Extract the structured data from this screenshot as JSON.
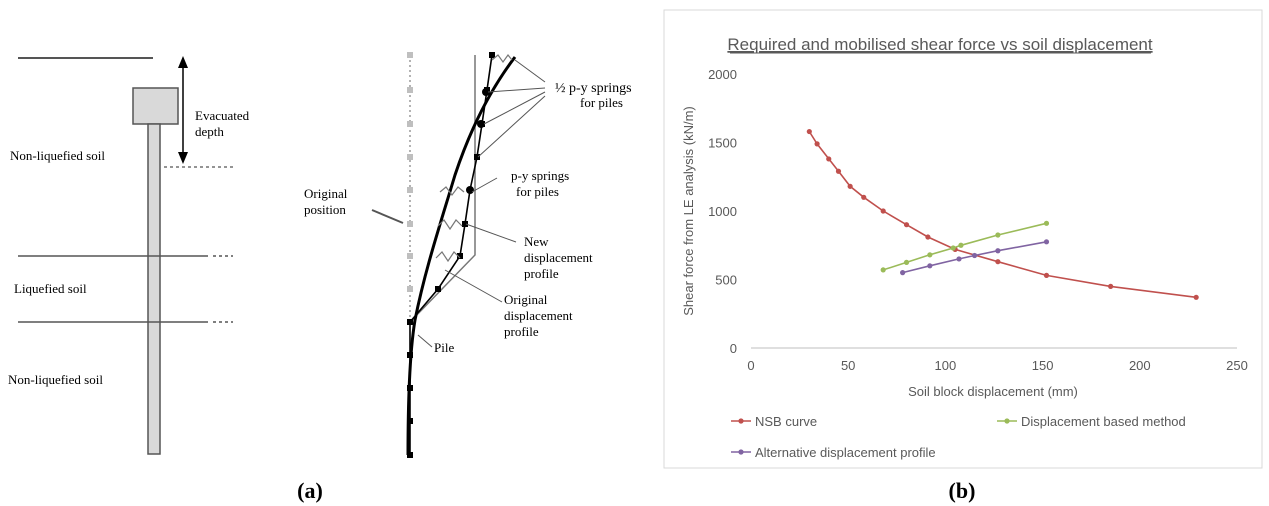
{
  "panel_a": {
    "label": "(a)",
    "soil_labels": {
      "top": "Non-liquefied soil",
      "middle": "Liquefied soil",
      "bottom": "Non-liquefied soil"
    },
    "evacuated_depth": [
      "Evacuated",
      "depth"
    ],
    "original_position": [
      "Original",
      "position"
    ],
    "half_springs": [
      "½ p-y springs",
      "for piles"
    ],
    "springs": [
      "p-y springs",
      "for piles"
    ],
    "new_profile": [
      "New",
      "displacement",
      "profile"
    ],
    "orig_profile": [
      "Original",
      "displacement",
      "profile"
    ],
    "pile": "Pile"
  },
  "panel_b": {
    "label": "(b)",
    "colors": {
      "nsb": "#c0504d",
      "dbm": "#9bbb59",
      "alt": "#8064a2",
      "axis": "#bfbfbf",
      "text": "#595959"
    }
  },
  "chart_data": {
    "type": "line",
    "title": "Required and mobilised shear force vs soil displacement",
    "xlabel": "Soil block displacement (mm)",
    "ylabel": "Shear force from LE analysis (kN/m)",
    "xlim": [
      0,
      250
    ],
    "ylim": [
      0,
      2000
    ],
    "xticks": [
      0,
      50,
      100,
      150,
      200,
      250
    ],
    "yticks": [
      0,
      500,
      1000,
      1500,
      2000
    ],
    "grid": false,
    "legend": "bottom",
    "series": [
      {
        "name": "NSB curve",
        "x": [
          30,
          34,
          40,
          45,
          51,
          58,
          68,
          80,
          91,
          105,
          127,
          152,
          185,
          229
        ],
        "y": [
          1580,
          1490,
          1380,
          1290,
          1180,
          1100,
          1000,
          900,
          810,
          720,
          630,
          530,
          450,
          370
        ]
      },
      {
        "name": "Displacement based method",
        "x": [
          68,
          80,
          92,
          104,
          108,
          127,
          152
        ],
        "y": [
          570,
          625,
          680,
          730,
          750,
          825,
          910
        ]
      },
      {
        "name": "Alternative displacement profile",
        "x": [
          78,
          92,
          107,
          115,
          127,
          152
        ],
        "y": [
          550,
          600,
          650,
          675,
          710,
          775
        ]
      }
    ]
  }
}
